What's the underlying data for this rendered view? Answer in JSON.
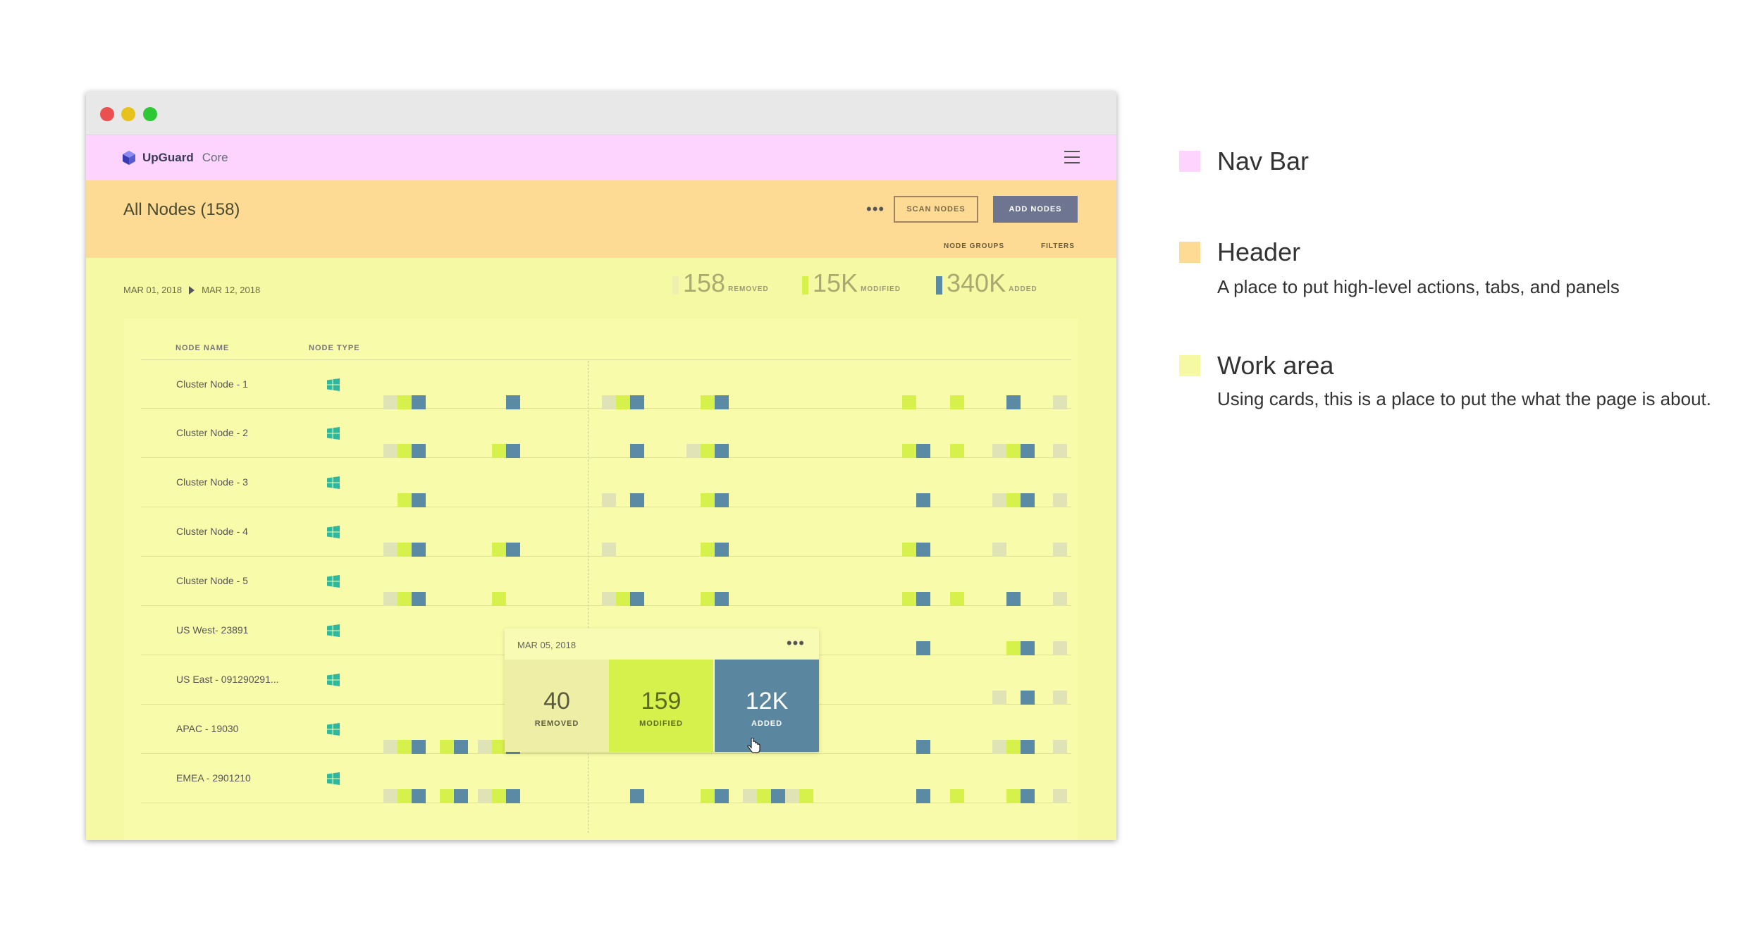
{
  "app": {
    "brand": "UpGuard",
    "brand_sub": "Core"
  },
  "header": {
    "title": "All Nodes (158)",
    "scan_label": "SCAN NODES",
    "add_label": "ADD NODES",
    "tabs": [
      "NODE GROUPS",
      "FILTERS"
    ]
  },
  "work": {
    "date_start": "MAR 01, 2018",
    "date_end": "MAR 12, 2018",
    "stats": [
      {
        "value": "158",
        "label": "REMOVED",
        "color": "#eef0b0"
      },
      {
        "value": "15K",
        "label": "MODIFIED",
        "color": "#d6f04c"
      },
      {
        "value": "340K",
        "label": "ADDED",
        "color": "#5a8aa4"
      }
    ],
    "columns": [
      "NODE NAME",
      "NODE TYPE"
    ],
    "rows": [
      {
        "name": "Cluster Node - 1"
      },
      {
        "name": "Cluster Node - 2"
      },
      {
        "name": "Cluster Node - 3"
      },
      {
        "name": "Cluster Node - 4"
      },
      {
        "name": "Cluster Node - 5"
      },
      {
        "name": "US West- 23891"
      },
      {
        "name": "US East - 091290291..."
      },
      {
        "name": "APAC - 19030"
      },
      {
        "name": "EMEA - 2901210"
      }
    ]
  },
  "popover": {
    "date": "MAR 05, 2018",
    "tiles": [
      {
        "value": "40",
        "label": "REMOVED"
      },
      {
        "value": "159",
        "label": "MODIFIED"
      },
      {
        "value": "12K",
        "label": "ADDED"
      }
    ]
  },
  "legend": [
    {
      "title": "Nav Bar",
      "desc": "",
      "color": "#fdd4fd"
    },
    {
      "title": "Header",
      "desc": "A place to put high-level actions, tabs, and panels",
      "color": "#fddb94"
    },
    {
      "title": "Work area",
      "desc": "Using cards, this is a place to put the what the page is about.",
      "color": "#f6f9a4"
    }
  ]
}
